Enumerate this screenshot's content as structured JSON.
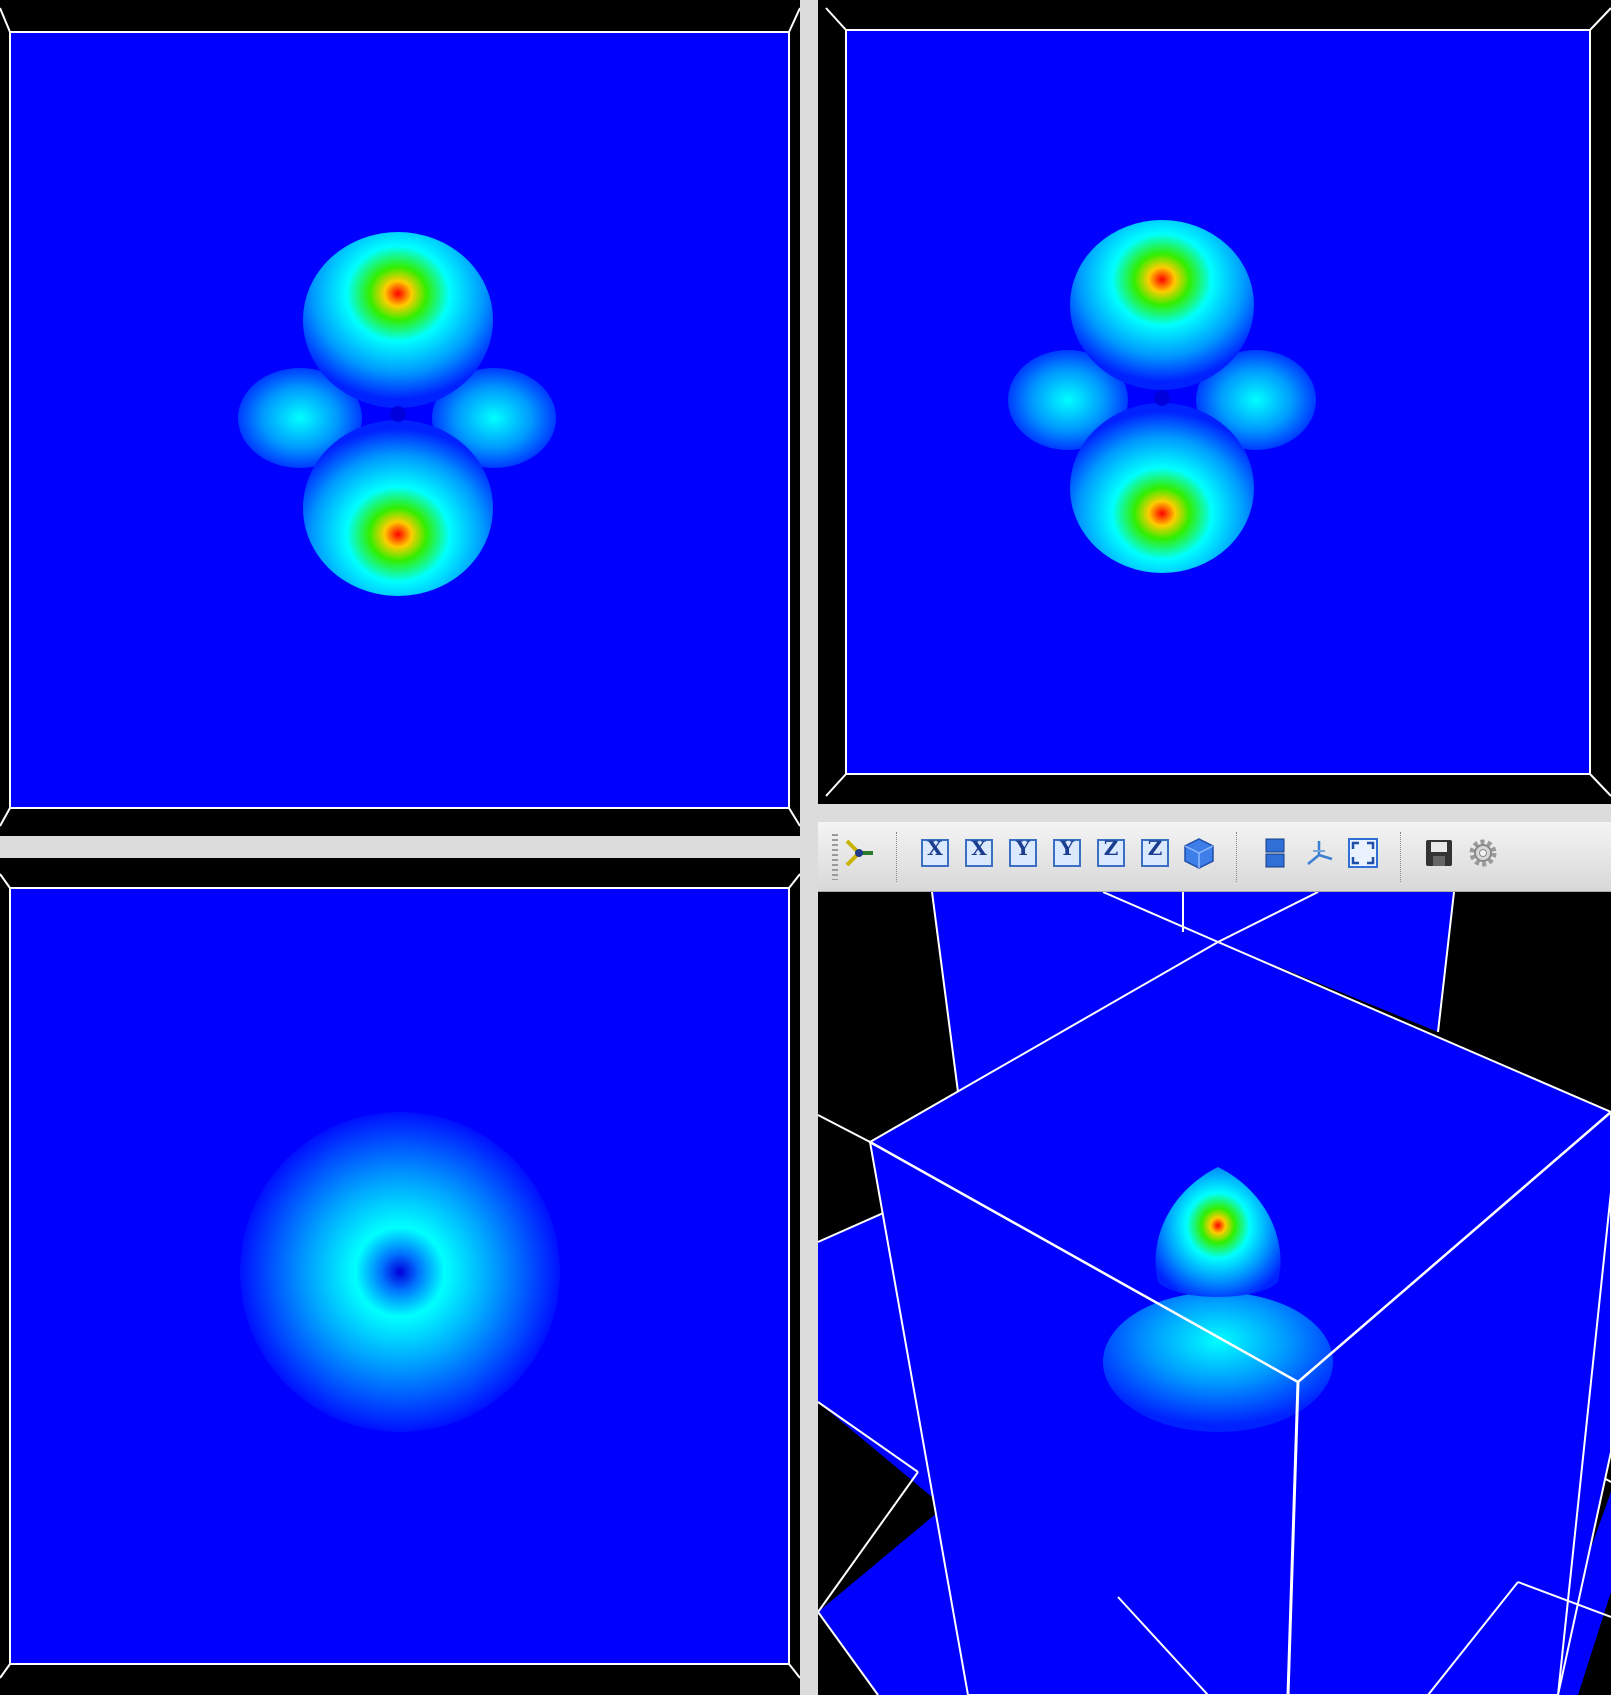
{
  "views": [
    {
      "id": "view-xy",
      "name": "top-left-slice-view"
    },
    {
      "id": "view-xz",
      "name": "top-right-slice-view"
    },
    {
      "id": "view-yz",
      "name": "bottom-left-slice-view"
    },
    {
      "id": "view-3d",
      "name": "bottom-right-3d-view"
    }
  ],
  "colors": {
    "field_low": "#0000ff",
    "frame": "#000000",
    "outline": "#ffffff",
    "colormap": [
      "blue",
      "cyan",
      "green",
      "yellow",
      "red"
    ]
  },
  "toolbar": {
    "buttons": [
      {
        "icon": "render-mode-icon",
        "label": ""
      },
      {
        "icon": "axis-x-pos-icon",
        "label": "X"
      },
      {
        "icon": "axis-x-neg-icon",
        "label": "X"
      },
      {
        "icon": "axis-y-pos-icon",
        "label": "Y"
      },
      {
        "icon": "axis-y-neg-icon",
        "label": "Y"
      },
      {
        "icon": "axis-z-pos-icon",
        "label": "Z"
      },
      {
        "icon": "axis-z-neg-icon",
        "label": "Z"
      },
      {
        "icon": "isometric-view-icon",
        "label": ""
      },
      {
        "icon": "layout-icon",
        "label": ""
      },
      {
        "icon": "axes-orientation-icon",
        "label": ""
      },
      {
        "icon": "fullscreen-icon",
        "label": ""
      },
      {
        "icon": "save-icon",
        "label": ""
      },
      {
        "icon": "settings-icon",
        "label": ""
      }
    ]
  }
}
